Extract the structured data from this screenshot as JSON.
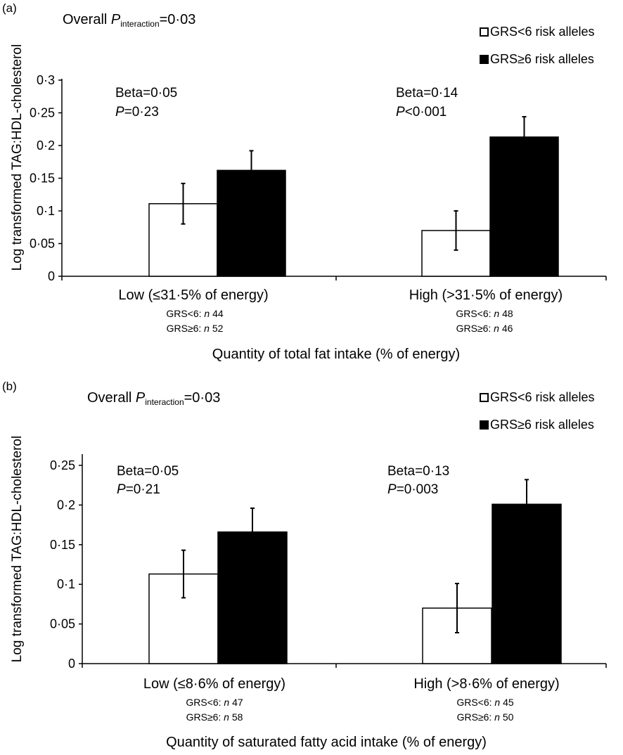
{
  "chart_data": [
    {
      "panel_label": "(a)",
      "type": "bar",
      "ylabel": "Log transformed TAG:HDL-cholesterol",
      "xlabel": "Quantity of total fat intake (% of energy)",
      "ylim": [
        0,
        0.3
      ],
      "yticks": [
        "0",
        "0·05",
        "0·1",
        "0·15",
        "0·2",
        "0·25",
        "0·3"
      ],
      "overall_prefix": "Overall ",
      "overall_P": "P",
      "overall_sub": "interaction",
      "overall_value": "=0·03",
      "legend": [
        {
          "label": "GRS<6 risk alleles",
          "fill": "#ffffff"
        },
        {
          "label": "GRS≥6 risk alleles",
          "fill": "#000000"
        }
      ],
      "series": [
        {
          "name": "GRS<6 risk alleles",
          "values": [
            0.111,
            0.07
          ],
          "errors": [
            0.031,
            0.03
          ]
        },
        {
          "name": "GRS≥6 risk alleles",
          "values": [
            0.162,
            0.213
          ],
          "errors": [
            0.03,
            0.031
          ]
        }
      ],
      "categories": [
        "Low (≤31·5% of energy)",
        "High (>31·5% of energy)"
      ],
      "group_annotations": [
        {
          "beta": "Beta=0·05",
          "p_italic": "P",
          "p_value": "=0·23"
        },
        {
          "beta": "Beta=0·14",
          "p_italic": "P",
          "p_value": "<0·001"
        }
      ],
      "counts": [
        [
          {
            "prefix": "GRS<6: ",
            "n": "n",
            "value": " 44"
          },
          {
            "prefix": "GRS≥6: ",
            "n": "n",
            "value": " 52"
          }
        ],
        [
          {
            "prefix": "GRS<6: ",
            "n": "n",
            "value": " 48"
          },
          {
            "prefix": "GRS≥6: ",
            "n": "n",
            "value": " 46"
          }
        ]
      ]
    },
    {
      "panel_label": "(b)",
      "type": "bar",
      "ylabel": "Log transformed TAG:HDL-cholesterol",
      "xlabel": "Quantity of saturated fatty acid intake (% of energy)",
      "ylim": [
        0,
        0.25
      ],
      "yticks": [
        "0",
        "0·05",
        "0·1",
        "0·15",
        "0·2",
        "0·25"
      ],
      "overall_prefix": "Overall ",
      "overall_P": "P",
      "overall_sub": "interaction",
      "overall_value": "=0·03",
      "legend": [
        {
          "label": "GRS<6 risk alleles",
          "fill": "#ffffff"
        },
        {
          "label": "GRS≥6 risk alleles",
          "fill": "#000000"
        }
      ],
      "series": [
        {
          "name": "GRS<6 risk alleles",
          "values": [
            0.113,
            0.07
          ],
          "errors": [
            0.03,
            0.031
          ]
        },
        {
          "name": "GRS≥6 risk alleles",
          "values": [
            0.166,
            0.201
          ],
          "errors": [
            0.03,
            0.031
          ]
        }
      ],
      "categories": [
        "Low (≤8·6% of energy)",
        "High (>8·6% of energy)"
      ],
      "group_annotations": [
        {
          "beta": "Beta=0·05",
          "p_italic": "P",
          "p_value": "=0·21"
        },
        {
          "beta": "Beta=0·13",
          "p_italic": "P",
          "p_value": "=0·003"
        }
      ],
      "counts": [
        [
          {
            "prefix": "GRS<6: ",
            "n": "n",
            "value": " 47"
          },
          {
            "prefix": "GRS≥6: ",
            "n": "n",
            "value": " 58"
          }
        ],
        [
          {
            "prefix": "GRS<6: ",
            "n": "n",
            "value": " 45"
          },
          {
            "prefix": "GRS≥6: ",
            "n": "n",
            "value": " 50"
          }
        ]
      ]
    }
  ]
}
